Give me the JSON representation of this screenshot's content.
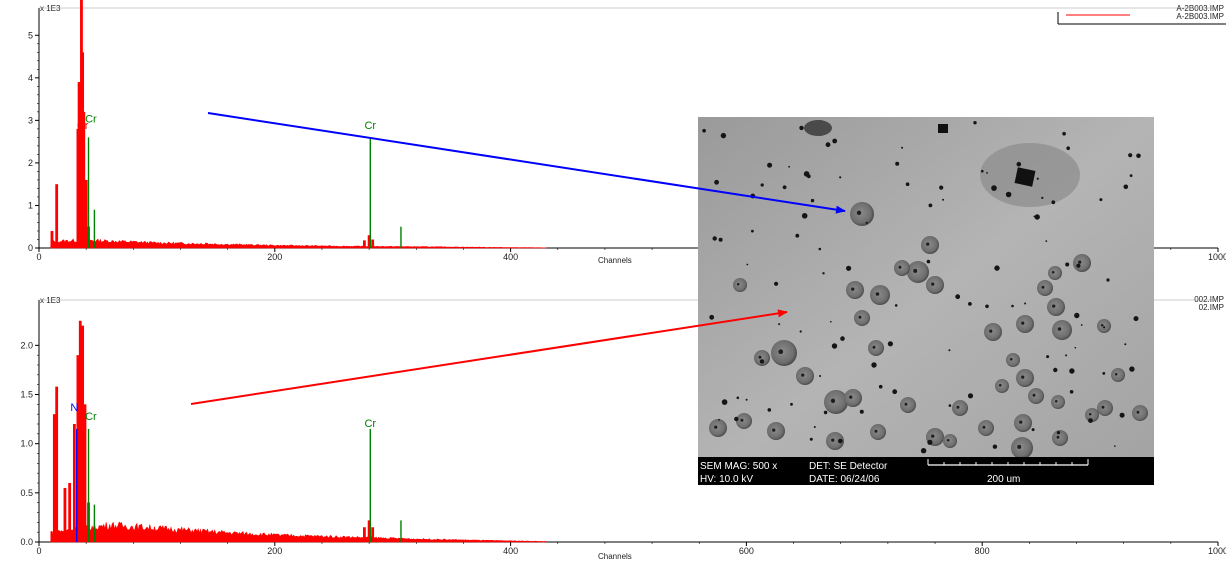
{
  "chart_data": [
    {
      "type": "bar",
      "scale_label": "x 1E3",
      "xlabel": "Channels",
      "ylabel": "",
      "xlim": [
        0,
        1000
      ],
      "ylim": [
        0,
        5.5
      ],
      "x_ticks": [
        0,
        200,
        400,
        600,
        800,
        1000
      ],
      "y_ticks": [
        0,
        1,
        2,
        3,
        4,
        5
      ],
      "legend": {
        "entries": [
          "A-2B003.IMP",
          "A-2B003.IMP"
        ],
        "placement": "top-right"
      },
      "spectrum_color": "#ff0000",
      "background_level": [
        {
          "x": 10,
          "y": 0.15
        },
        {
          "x": 40,
          "y": 0.18
        },
        {
          "x": 60,
          "y": 0.16
        },
        {
          "x": 100,
          "y": 0.12
        },
        {
          "x": 150,
          "y": 0.09
        },
        {
          "x": 200,
          "y": 0.06
        },
        {
          "x": 260,
          "y": 0.04
        },
        {
          "x": 320,
          "y": 0.03
        },
        {
          "x": 380,
          "y": 0.015
        },
        {
          "x": 430,
          "y": 0.005
        }
      ],
      "peaks": [
        {
          "x": 11,
          "y": 0.4
        },
        {
          "x": 15,
          "y": 1.5
        },
        {
          "x": 33,
          "y": 2.8
        },
        {
          "x": 34,
          "y": 3.9
        },
        {
          "x": 36,
          "y": 5.95
        },
        {
          "x": 37,
          "y": 4.6
        },
        {
          "x": 38,
          "y": 3.2
        },
        {
          "x": 40,
          "y": 1.6
        },
        {
          "x": 42,
          "y": 0.5
        },
        {
          "x": 142,
          "y": 0.12
        },
        {
          "x": 276,
          "y": 0.18
        },
        {
          "x": 280,
          "y": 0.3
        },
        {
          "x": 283,
          "y": 0.2
        }
      ],
      "marker_lines": [
        {
          "x": 42,
          "y": 2.6,
          "color": "#008000"
        },
        {
          "x": 47,
          "y": 0.9,
          "color": "#008000"
        },
        {
          "x": 281,
          "y": 2.6,
          "color": "#008000"
        },
        {
          "x": 307,
          "y": 0.5,
          "color": "#008000"
        }
      ],
      "annotations": [
        {
          "text": "Cr",
          "x": 44,
          "y": 2.95,
          "color": "#008000"
        },
        {
          "text": "Cr",
          "x": 37,
          "y": 2.8,
          "color": "#ff0000"
        },
        {
          "text": "Cr",
          "x": 281,
          "y": 2.8,
          "color": "#008000"
        }
      ]
    },
    {
      "type": "bar",
      "scale_label": "x 1E3",
      "xlabel": "Channels",
      "ylabel": "",
      "xlim": [
        0,
        1000
      ],
      "ylim": [
        0,
        2.4
      ],
      "x_ticks": [
        0,
        200,
        400,
        600,
        800,
        1000
      ],
      "y_ticks": [
        0.0,
        0.5,
        1.0,
        1.5,
        2.0
      ],
      "y_tick_labels": [
        "0.0",
        "0.5",
        "1.0",
        "1.5",
        "2.0"
      ],
      "legend": {
        "entries": [
          "002.IMP",
          "02.IMP"
        ],
        "placement": "top-right"
      },
      "spectrum_color": "#ff0000",
      "background_level": [
        {
          "x": 10,
          "y": 0.1
        },
        {
          "x": 40,
          "y": 0.14
        },
        {
          "x": 60,
          "y": 0.17
        },
        {
          "x": 100,
          "y": 0.14
        },
        {
          "x": 150,
          "y": 0.1
        },
        {
          "x": 200,
          "y": 0.07
        },
        {
          "x": 260,
          "y": 0.05
        },
        {
          "x": 320,
          "y": 0.03
        },
        {
          "x": 380,
          "y": 0.015
        },
        {
          "x": 430,
          "y": 0.005
        }
      ],
      "peaks": [
        {
          "x": 13,
          "y": 1.3
        },
        {
          "x": 15,
          "y": 1.58
        },
        {
          "x": 22,
          "y": 0.55
        },
        {
          "x": 26,
          "y": 0.6
        },
        {
          "x": 30,
          "y": 1.2
        },
        {
          "x": 33,
          "y": 1.9
        },
        {
          "x": 35,
          "y": 2.25
        },
        {
          "x": 37,
          "y": 2.2
        },
        {
          "x": 39,
          "y": 1.4
        },
        {
          "x": 42,
          "y": 0.4
        },
        {
          "x": 276,
          "y": 0.15
        },
        {
          "x": 280,
          "y": 0.22
        },
        {
          "x": 283,
          "y": 0.15
        },
        {
          "x": 308,
          "y": 0.04
        }
      ],
      "marker_lines": [
        {
          "x": 32,
          "y": 1.15,
          "color": "#0000ff"
        },
        {
          "x": 42,
          "y": 1.15,
          "color": "#008000"
        },
        {
          "x": 47,
          "y": 0.38,
          "color": "#008000"
        },
        {
          "x": 281,
          "y": 1.15,
          "color": "#008000"
        },
        {
          "x": 307,
          "y": 0.22,
          "color": "#008000"
        }
      ],
      "annotations": [
        {
          "text": "N",
          "x": 30,
          "y": 1.33,
          "color": "#0000ff"
        },
        {
          "text": "Cr",
          "x": 44,
          "y": 1.24,
          "color": "#008000"
        },
        {
          "text": "Cr",
          "x": 281,
          "y": 1.17,
          "color": "#008000"
        }
      ]
    }
  ],
  "sem_image": {
    "mag": "SEM MAG: 500 x",
    "detector": "DET: SE Detector",
    "hv": "HV:  10.0 kV",
    "date": "DATE: 06/24/06",
    "scale": "200 um"
  },
  "arrows": [
    {
      "color": "#0000ff"
    },
    {
      "color": "#ff0000"
    }
  ]
}
